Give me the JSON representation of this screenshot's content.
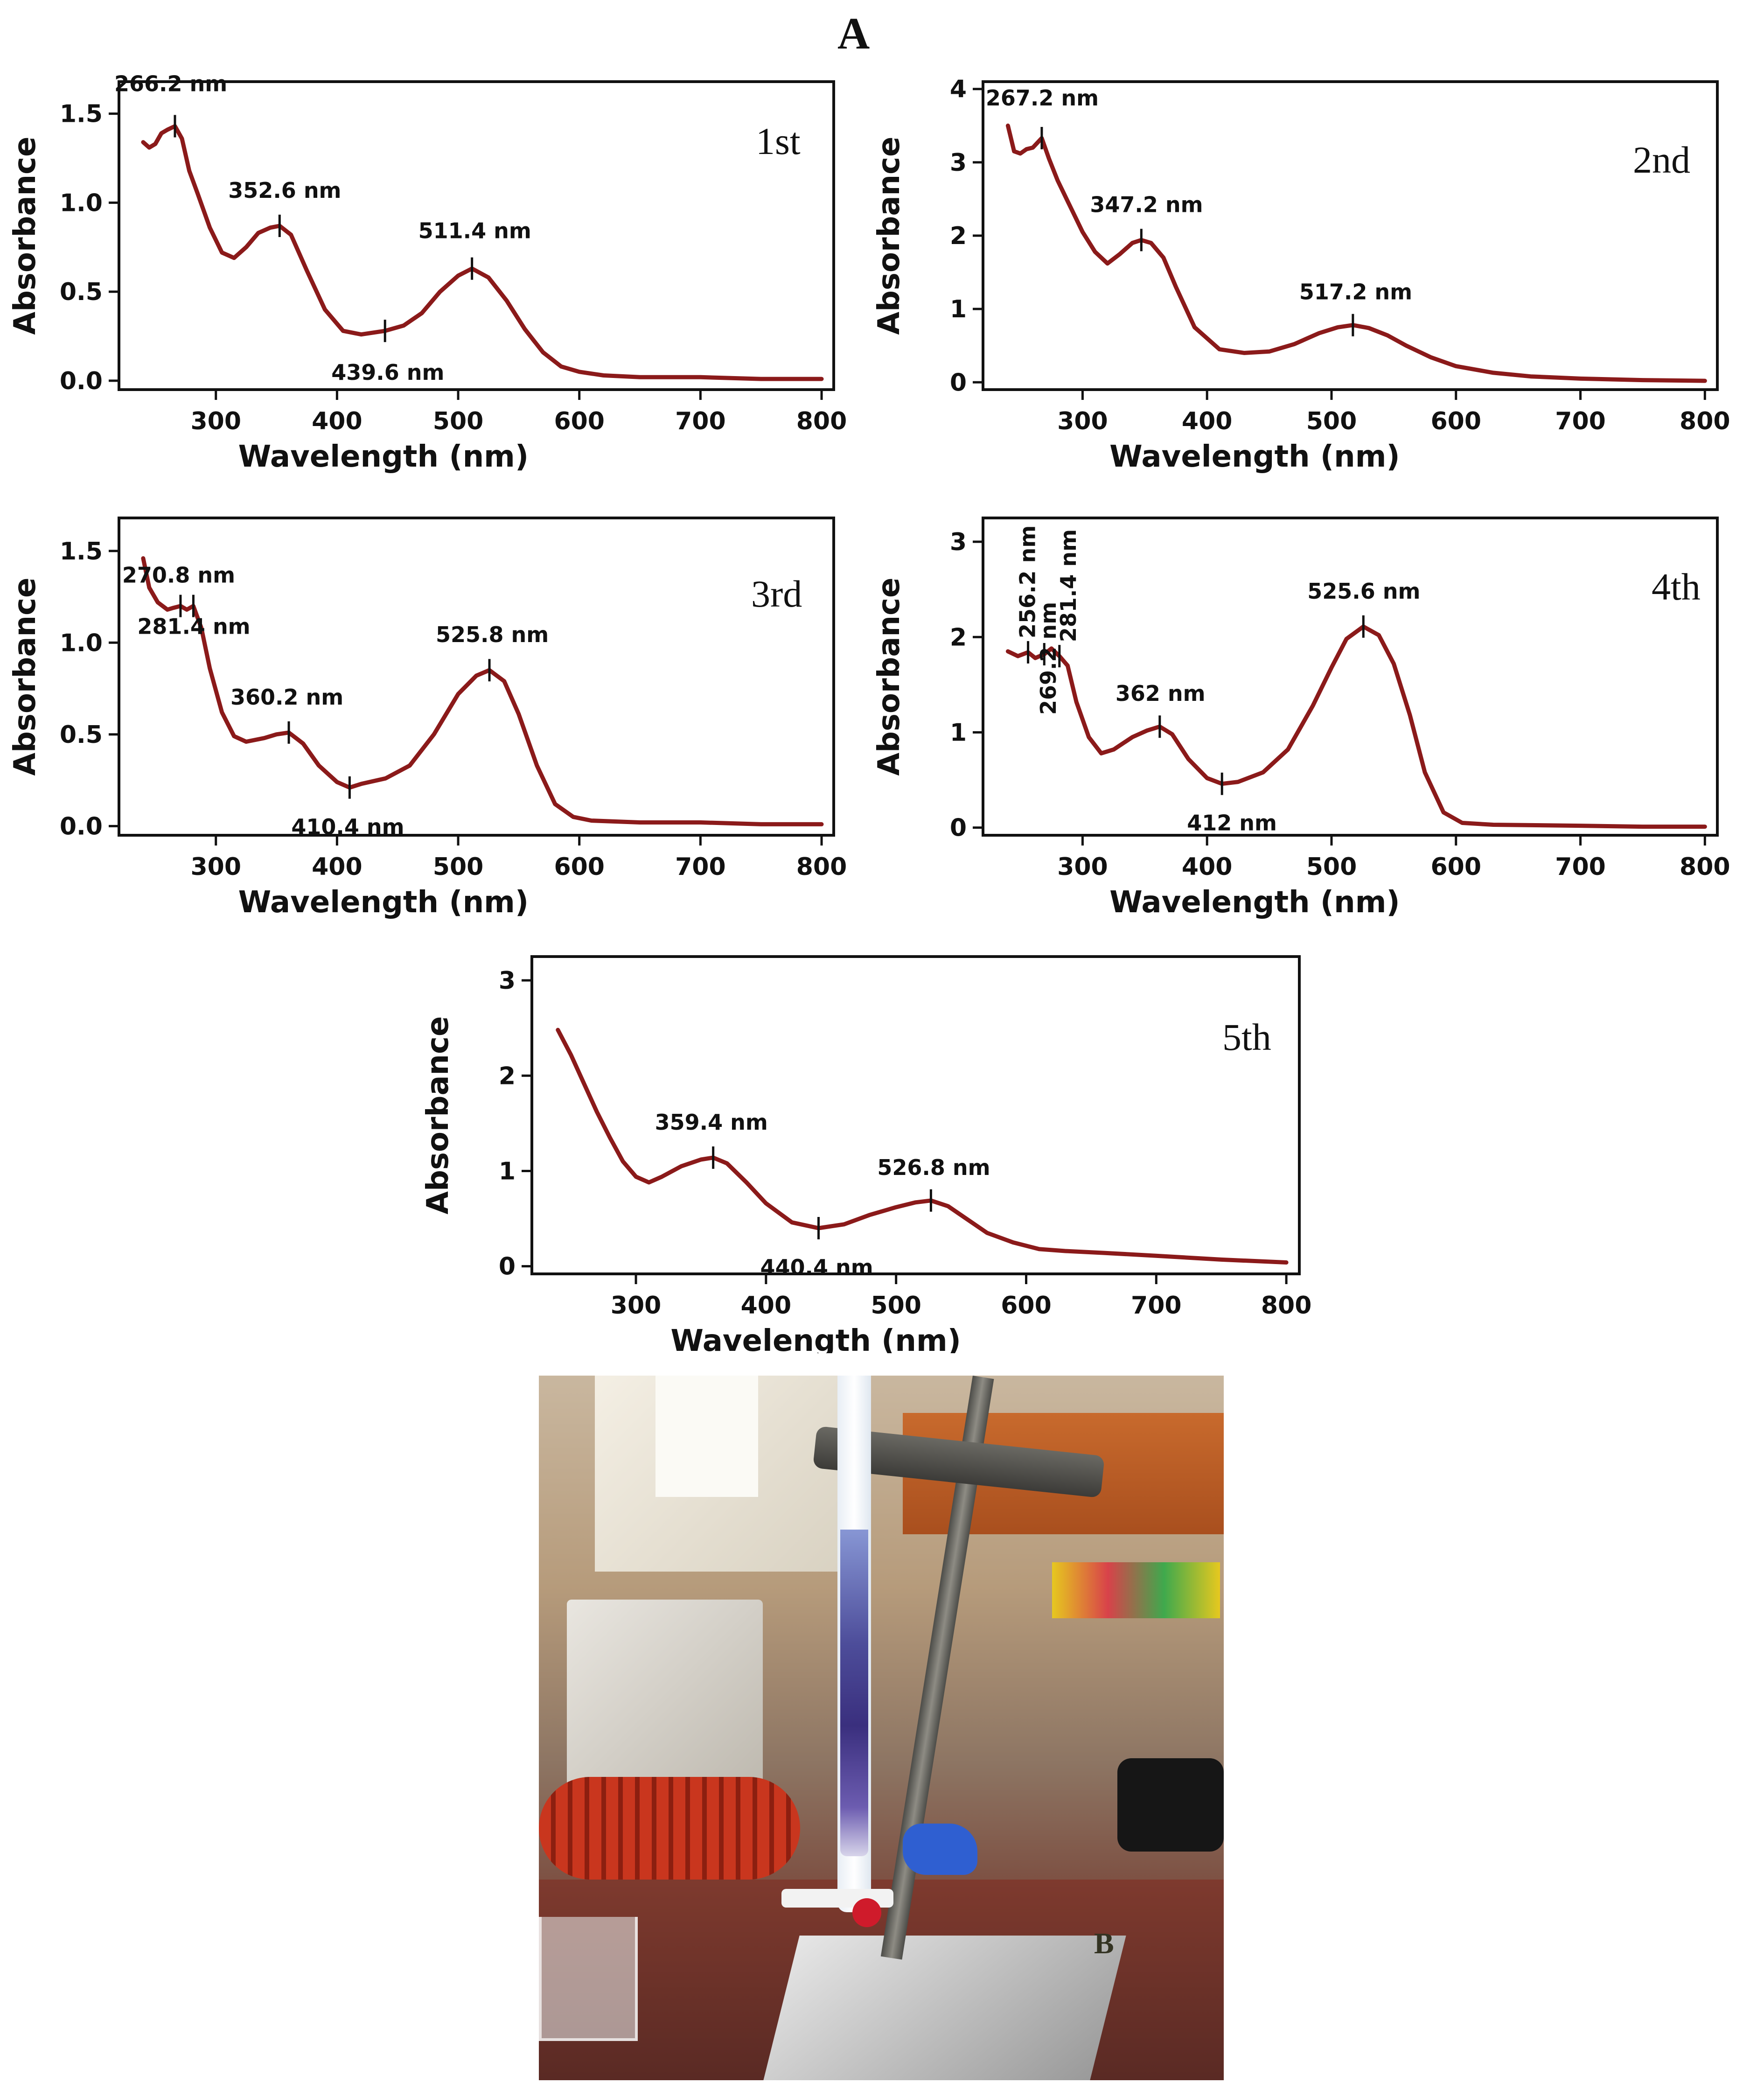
{
  "figure": {
    "panel_a_label": "A",
    "panel_b_label": "B"
  },
  "chart_data": [
    {
      "type": "line",
      "order_label": "1st",
      "xlabel": "Wavelength (nm)",
      "ylabel": "Absorbance",
      "xlim": [
        220,
        810
      ],
      "ylim": [
        -0.05,
        1.68
      ],
      "xticks": [
        300,
        400,
        500,
        600,
        700,
        800
      ],
      "yticks": [
        0.0,
        0.5,
        1.0,
        1.5
      ],
      "ytick_labels": [
        "0.0",
        "0.5",
        "1.0",
        "1.5"
      ],
      "series_color": "#8b1a1a",
      "x": [
        240,
        245,
        250,
        255,
        260,
        266.2,
        272,
        278,
        285,
        295,
        305,
        315,
        325,
        335,
        345,
        352.6,
        362,
        375,
        390,
        405,
        420,
        439.6,
        455,
        470,
        485,
        500,
        511.4,
        525,
        540,
        555,
        570,
        585,
        600,
        620,
        650,
        700,
        750,
        800
      ],
      "values": [
        1.34,
        1.31,
        1.33,
        1.39,
        1.41,
        1.43,
        1.36,
        1.18,
        1.05,
        0.86,
        0.72,
        0.69,
        0.75,
        0.83,
        0.86,
        0.87,
        0.82,
        0.62,
        0.4,
        0.28,
        0.26,
        0.28,
        0.31,
        0.38,
        0.5,
        0.59,
        0.63,
        0.58,
        0.45,
        0.29,
        0.16,
        0.08,
        0.05,
        0.03,
        0.02,
        0.02,
        0.01,
        0.01
      ],
      "annotations": [
        {
          "x": 266.2,
          "y": 1.43,
          "label": "266.2 nm"
        },
        {
          "x": 352.6,
          "y": 0.87,
          "label": "352.6 nm"
        },
        {
          "x": 439.6,
          "y": 0.28,
          "label": "439.6 nm"
        },
        {
          "x": 511.4,
          "y": 0.63,
          "label": "511.4 nm"
        }
      ]
    },
    {
      "type": "line",
      "order_label": "2nd",
      "xlabel": "Wavelength (nm)",
      "ylabel": "Absorbance",
      "xlim": [
        220,
        810
      ],
      "ylim": [
        -0.1,
        4.1
      ],
      "xticks": [
        300,
        400,
        500,
        600,
        700,
        800
      ],
      "yticks": [
        0,
        1,
        2,
        3,
        4
      ],
      "ytick_labels": [
        "0",
        "1",
        "2",
        "3",
        "4"
      ],
      "series_color": "#8b1a1a",
      "x": [
        240,
        245,
        250,
        255,
        260,
        267.2,
        273,
        280,
        290,
        300,
        310,
        320,
        330,
        340,
        347.2,
        355,
        365,
        375,
        390,
        410,
        430,
        450,
        470,
        490,
        505,
        517.2,
        530,
        545,
        560,
        580,
        600,
        630,
        660,
        700,
        750,
        800
      ],
      "values": [
        3.5,
        3.15,
        3.12,
        3.18,
        3.2,
        3.33,
        3.05,
        2.75,
        2.4,
        2.05,
        1.78,
        1.62,
        1.75,
        1.9,
        1.94,
        1.9,
        1.7,
        1.3,
        0.75,
        0.45,
        0.4,
        0.42,
        0.52,
        0.67,
        0.75,
        0.78,
        0.74,
        0.64,
        0.5,
        0.34,
        0.22,
        0.13,
        0.08,
        0.05,
        0.03,
        0.02
      ],
      "annotations": [
        {
          "x": 267.2,
          "y": 3.33,
          "label": "267.2 nm"
        },
        {
          "x": 347.2,
          "y": 1.94,
          "label": "347.2 nm"
        },
        {
          "x": 517.2,
          "y": 0.78,
          "label": "517.2 nm"
        }
      ]
    },
    {
      "type": "line",
      "order_label": "3rd",
      "xlabel": "Wavelength (nm)",
      "ylabel": "Absorbance",
      "xlim": [
        220,
        810
      ],
      "ylim": [
        -0.05,
        1.68
      ],
      "xticks": [
        300,
        400,
        500,
        600,
        700,
        800
      ],
      "yticks": [
        0.0,
        0.5,
        1.0,
        1.5
      ],
      "ytick_labels": [
        "0.0",
        "0.5",
        "1.0",
        "1.5"
      ],
      "series_color": "#8b1a1a",
      "x": [
        240,
        245,
        252,
        260,
        265,
        270.8,
        276,
        281.4,
        288,
        295,
        305,
        315,
        325,
        340,
        350,
        360.2,
        372,
        385,
        400,
        410.4,
        420,
        440,
        460,
        480,
        500,
        515,
        525.8,
        538,
        550,
        565,
        580,
        595,
        610,
        650,
        700,
        750,
        800
      ],
      "values": [
        1.46,
        1.3,
        1.22,
        1.18,
        1.19,
        1.2,
        1.18,
        1.2,
        1.08,
        0.86,
        0.62,
        0.49,
        0.46,
        0.48,
        0.5,
        0.51,
        0.45,
        0.33,
        0.24,
        0.21,
        0.23,
        0.26,
        0.33,
        0.5,
        0.72,
        0.82,
        0.85,
        0.79,
        0.61,
        0.33,
        0.12,
        0.05,
        0.03,
        0.02,
        0.02,
        0.01,
        0.01
      ],
      "annotations": [
        {
          "x": 270.8,
          "y": 1.2,
          "label": "270.8 nm"
        },
        {
          "x": 281.4,
          "y": 1.2,
          "label": "281.4 nm"
        },
        {
          "x": 360.2,
          "y": 0.51,
          "label": "360.2 nm"
        },
        {
          "x": 410.4,
          "y": 0.21,
          "label": "410.4 nm"
        },
        {
          "x": 525.8,
          "y": 0.85,
          "label": "525.8 nm"
        }
      ]
    },
    {
      "type": "line",
      "order_label": "4th",
      "xlabel": "Wavelength (nm)",
      "ylabel": "Absorbance",
      "xlim": [
        220,
        810
      ],
      "ylim": [
        -0.08,
        3.25
      ],
      "xticks": [
        300,
        400,
        500,
        600,
        700,
        800
      ],
      "yticks": [
        0,
        1,
        2,
        3
      ],
      "ytick_labels": [
        "0",
        "1",
        "2",
        "3"
      ],
      "series_color": "#8b1a1a",
      "x": [
        240,
        248,
        256.2,
        262,
        269.2,
        275,
        281.4,
        288,
        295,
        305,
        315,
        325,
        340,
        352,
        362,
        372,
        385,
        400,
        412,
        425,
        445,
        465,
        485,
        500,
        512,
        525.6,
        538,
        550,
        563,
        575,
        590,
        605,
        630,
        700,
        750,
        800
      ],
      "values": [
        1.85,
        1.8,
        1.84,
        1.78,
        1.82,
        1.88,
        1.8,
        1.7,
        1.32,
        0.95,
        0.78,
        0.82,
        0.95,
        1.02,
        1.06,
        0.98,
        0.72,
        0.52,
        0.46,
        0.48,
        0.58,
        0.82,
        1.28,
        1.68,
        1.98,
        2.11,
        2.02,
        1.72,
        1.18,
        0.58,
        0.16,
        0.05,
        0.03,
        0.02,
        0.01,
        0.01
      ],
      "annotations": [
        {
          "x": 256.2,
          "y": 1.84,
          "label": "256.2 nm"
        },
        {
          "x": 269.2,
          "y": 1.82,
          "label": "269.2 nm"
        },
        {
          "x": 281.4,
          "y": 1.8,
          "label": "281.4 nm"
        },
        {
          "x": 362,
          "y": 1.06,
          "label": "362 nm"
        },
        {
          "x": 412,
          "y": 0.46,
          "label": "412 nm"
        },
        {
          "x": 525.6,
          "y": 2.11,
          "label": "525.6 nm"
        }
      ]
    },
    {
      "type": "line",
      "order_label": "5th",
      "xlabel": "Wavelength (nm)",
      "ylabel": "Absorbance",
      "xlim": [
        220,
        810
      ],
      "ylim": [
        -0.08,
        3.25
      ],
      "xticks": [
        300,
        400,
        500,
        600,
        700,
        800
      ],
      "yticks": [
        0,
        1,
        2,
        3
      ],
      "ytick_labels": [
        "0",
        "1",
        "2",
        "3"
      ],
      "series_color": "#8b1a1a",
      "x": [
        240,
        250,
        260,
        270,
        280,
        290,
        300,
        310,
        320,
        335,
        350,
        359.4,
        370,
        385,
        400,
        420,
        440.4,
        460,
        480,
        500,
        515,
        526.8,
        540,
        555,
        570,
        590,
        610,
        630,
        660,
        700,
        750,
        800
      ],
      "values": [
        2.48,
        2.22,
        1.92,
        1.62,
        1.35,
        1.1,
        0.94,
        0.88,
        0.94,
        1.05,
        1.12,
        1.14,
        1.08,
        0.88,
        0.66,
        0.46,
        0.4,
        0.44,
        0.54,
        0.62,
        0.67,
        0.69,
        0.63,
        0.49,
        0.35,
        0.25,
        0.18,
        0.16,
        0.14,
        0.11,
        0.07,
        0.04
      ],
      "annotations": [
        {
          "x": 359.4,
          "y": 1.14,
          "label": "359.4 nm"
        },
        {
          "x": 440.4,
          "y": 0.4,
          "label": "440.4 nm"
        },
        {
          "x": 526.8,
          "y": 0.69,
          "label": "526.8 nm"
        }
      ]
    }
  ]
}
